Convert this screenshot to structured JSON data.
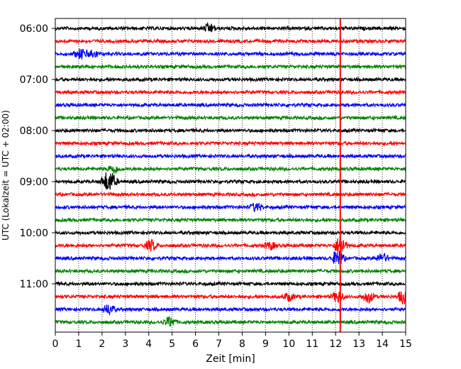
{
  "chart_data": {
    "type": "line",
    "title": "",
    "xlabel": "Zeit  [min]",
    "ylabel": "UTC (Lokalzeit = UTC + 02:00)",
    "xlim": [
      0,
      15
    ],
    "x_ticks": [
      "0",
      "1",
      "2",
      "3",
      "4",
      "5",
      "6",
      "7",
      "8",
      "9",
      "10",
      "11",
      "12",
      "13",
      "14",
      "15"
    ],
    "y_ticks": [
      "06:00",
      "07:00",
      "08:00",
      "09:00",
      "10:00",
      "11:00"
    ],
    "rows_per_hour": 4,
    "row_minutes": 15,
    "row_count": 24,
    "row_color_cycle": [
      "#000000",
      "#ff0000",
      "#0000ff",
      "#008000"
    ],
    "grid": "vertical dotted",
    "marker_line": {
      "x": 12.2,
      "color": "#ff0000"
    },
    "events": [
      {
        "row": 0,
        "x": 6.6,
        "amplitude": 1.6
      },
      {
        "row": 2,
        "x": 1.1,
        "amplitude": 1.8
      },
      {
        "row": 2,
        "x": 1.6,
        "amplitude": 1.5
      },
      {
        "row": 12,
        "x": 2.2,
        "amplitude": 2.4
      },
      {
        "row": 12,
        "x": 2.4,
        "amplitude": 2.2
      },
      {
        "row": 11,
        "x": 2.5,
        "amplitude": 1.5
      },
      {
        "row": 14,
        "x": 8.6,
        "amplitude": 1.5
      },
      {
        "row": 17,
        "x": 4.1,
        "amplitude": 2.0
      },
      {
        "row": 17,
        "x": 9.2,
        "amplitude": 1.3
      },
      {
        "row": 17,
        "x": 12.2,
        "amplitude": 3.5
      },
      {
        "row": 18,
        "x": 12.1,
        "amplitude": 3.0
      },
      {
        "row": 18,
        "x": 14.0,
        "amplitude": 1.6
      },
      {
        "row": 21,
        "x": 10.0,
        "amplitude": 1.3
      },
      {
        "row": 21,
        "x": 12.1,
        "amplitude": 2.0
      },
      {
        "row": 21,
        "x": 13.4,
        "amplitude": 2.0
      },
      {
        "row": 21,
        "x": 14.9,
        "amplitude": 2.5
      },
      {
        "row": 22,
        "x": 2.3,
        "amplitude": 1.8
      },
      {
        "row": 23,
        "x": 4.9,
        "amplitude": 1.8
      }
    ]
  }
}
